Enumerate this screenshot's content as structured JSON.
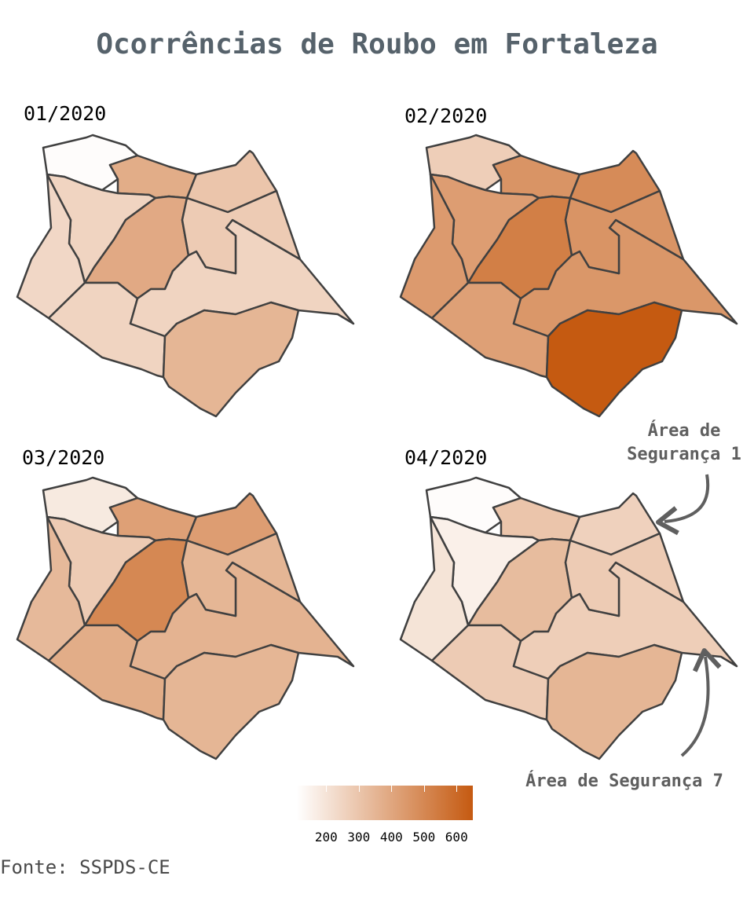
{
  "title": "Ocorrências de Roubo em Fortaleza",
  "source": "Fonte: SSPDS-CE",
  "legend": {
    "ticks": [
      "200",
      "300",
      "400",
      "500",
      "600"
    ],
    "min": 110,
    "max": 650,
    "color_low": "#ffffff",
    "color_high": "#c55a11"
  },
  "panels": [
    {
      "label": "01/2020",
      "values": {
        "A1": 250,
        "A2": 380,
        "A3": 300,
        "A4": 390,
        "A5": 120,
        "A6": 240,
        "A7": 250,
        "A8": 250,
        "A9": 280,
        "A10": 350
      }
    },
    {
      "label": "02/2020",
      "values": {
        "A1": 430,
        "A2": 460,
        "A3": 490,
        "A4": 530,
        "A5": 270,
        "A6": 440,
        "A7": 420,
        "A8": 450,
        "A9": 460,
        "A10": 650
      }
    },
    {
      "label": "03/2020",
      "values": {
        "A1": 280,
        "A2": 420,
        "A3": 430,
        "A4": 500,
        "A5": 180,
        "A6": 340,
        "A7": 380,
        "A8": 360,
        "A9": 350,
        "A10": 350
      }
    },
    {
      "label": "04/2020",
      "values": {
        "A1": 160,
        "A2": 300,
        "A3": 260,
        "A4": 330,
        "A5": 120,
        "A6": 200,
        "A7": 280,
        "A8": 270,
        "A9": 280,
        "A10": 350
      }
    }
  ],
  "annotations": {
    "area1": "Área de\nSegurança 1",
    "area7": "Área de Segurança 7"
  }
}
